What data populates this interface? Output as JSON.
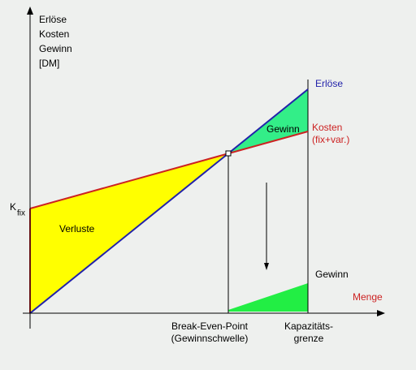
{
  "y_axis_label": [
    "Erlöse",
    "Kosten",
    "Gewinn",
    "[DM]"
  ],
  "revenue_label": "Erlöse",
  "profit_area_label": "Gewinn",
  "cost_label": [
    "Kosten",
    "(fix+var.)"
  ],
  "fixed_cost_label": {
    "main": "K",
    "sub": "fix"
  },
  "loss_area_label": "Verluste",
  "profit_label": "Gewinn",
  "x_axis_label": "Menge",
  "break_even_label": [
    "Break-Even-Point",
    "(Gewinnschwelle)"
  ],
  "capacity_label": [
    "Kapazitäts-",
    "grenze"
  ]
}
